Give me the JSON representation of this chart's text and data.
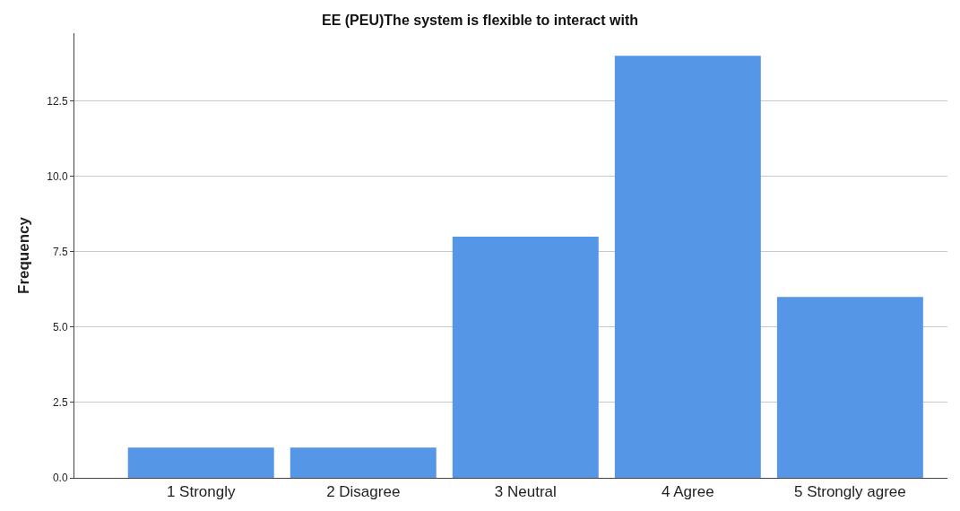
{
  "chart_data": {
    "type": "bar",
    "title": "EE (PEU)The system is flexible to interact with",
    "ylabel": "Frequency",
    "categories": [
      "1 Strongly",
      "2 Disagree",
      "3 Neutral",
      "4 Agree",
      "5 Strongly agree"
    ],
    "values": [
      1,
      1,
      8,
      14,
      6
    ],
    "color": "#5596e6",
    "ylim": [
      0,
      14.75
    ],
    "yticks": [
      {
        "value": 0,
        "label": "0.0"
      },
      {
        "value": 2.5,
        "label": "2.5"
      },
      {
        "value": 5,
        "label": "5.0"
      },
      {
        "value": 7.5,
        "label": "7.5"
      },
      {
        "value": 10,
        "label": "10.0"
      },
      {
        "value": 12.5,
        "label": "12.5"
      }
    ],
    "grid": "y"
  }
}
